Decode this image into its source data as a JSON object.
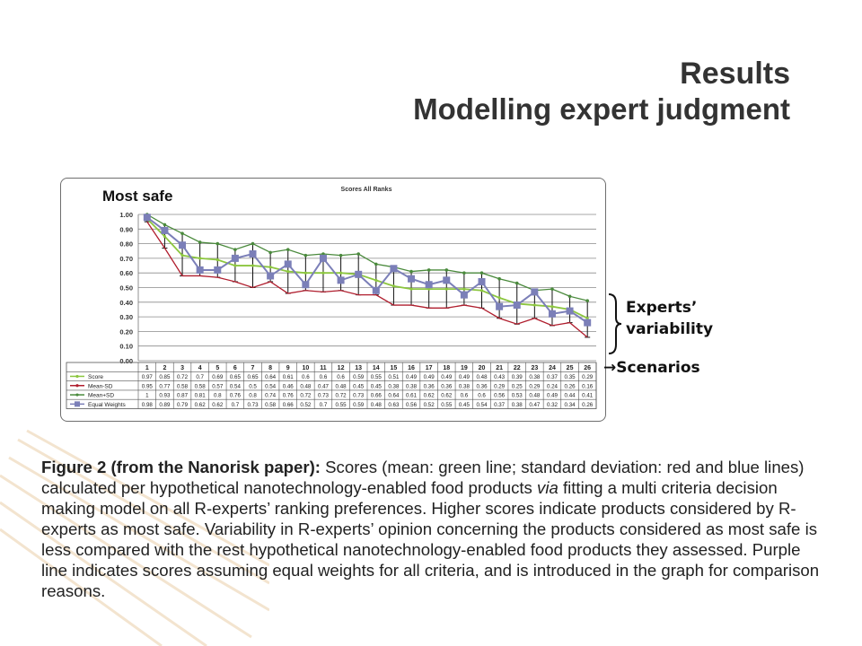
{
  "slide": {
    "title": "Results",
    "subtitle": "Modelling expert judgment"
  },
  "annotations": {
    "most_safe": "Most safe",
    "experts_variability": "Experts’",
    "experts_variability_2": "variability",
    "scenarios": "→Scenarios"
  },
  "caption": {
    "bold": "Figure 2 (from the Nanorisk paper):",
    "text_1": " Scores (mean: green line; standard deviation: red and blue lines) calculated per hypothetical nanotechnology-enabled food products ",
    "italic": "via",
    "text_2": " fitting a multi criteria decision making model on all R-experts’ ranking preferences. Higher scores indicate products considered by R-experts as most safe. Variability in R-experts’ opinion concerning the products considered as most safe is less compared with the rest hypothetical nanotechnology-enabled food products they assessed. Purple line indicates scores assuming equal weights for all criteria, and is introduced in the graph for comparison reasons."
  },
  "colors": {
    "score": "#8cc63f",
    "mean_minus_sd": "#b01e2e",
    "mean_plus_sd": "#4a8a3c",
    "equal_weights": "#7b7fb8"
  },
  "chart_data": {
    "type": "line",
    "title": "Scores All Ranks",
    "ylim": [
      0,
      1.0
    ],
    "yticks": [
      "0.00",
      "0.10",
      "0.20",
      "0.30",
      "0.40",
      "0.50",
      "0.60",
      "0.70",
      "0.80",
      "0.90",
      "1.00"
    ],
    "grid": true,
    "legend": "data-table-below",
    "x": [
      "1",
      "2",
      "3",
      "4",
      "5",
      "6",
      "7",
      "8",
      "9",
      "10",
      "11",
      "12",
      "13",
      "14",
      "15",
      "16",
      "17",
      "18",
      "19",
      "20",
      "21",
      "22",
      "23",
      "24",
      "25",
      "26"
    ],
    "series": [
      {
        "name": "Score",
        "values": [
          0.97,
          0.85,
          0.72,
          0.7,
          0.69,
          0.65,
          0.65,
          0.64,
          0.61,
          0.6,
          0.6,
          0.6,
          0.59,
          0.55,
          0.51,
          0.49,
          0.49,
          0.49,
          0.49,
          0.48,
          0.43,
          0.39,
          0.38,
          0.37,
          0.35,
          0.29
        ],
        "labels": [
          "0.97",
          "0.85",
          "0.72",
          "0.7",
          "0.69",
          "0.65",
          "0.65",
          "0.64",
          "0.61",
          "0.6",
          "0.6",
          "0.6",
          "0.59",
          "0.55",
          "0.51",
          "0.49",
          "0.49",
          "0.49",
          "0.49",
          "0.48",
          "0.43",
          "0.39",
          "0.38",
          "0.37",
          "0.35",
          "0.29"
        ]
      },
      {
        "name": "Mean-SD",
        "values": [
          0.95,
          0.77,
          0.58,
          0.58,
          0.57,
          0.54,
          0.5,
          0.54,
          0.46,
          0.48,
          0.47,
          0.48,
          0.45,
          0.45,
          0.38,
          0.38,
          0.36,
          0.36,
          0.38,
          0.36,
          0.29,
          0.25,
          0.29,
          0.24,
          0.26,
          0.16
        ],
        "labels": [
          "0.95",
          "0.77",
          "0.58",
          "0.58",
          "0.57",
          "0.54",
          "0.5",
          "0.54",
          "0.46",
          "0.48",
          "0.47",
          "0.48",
          "0.45",
          "0.45",
          "0.38",
          "0.38",
          "0.36",
          "0.36",
          "0.38",
          "0.36",
          "0.29",
          "0.25",
          "0.29",
          "0.24",
          "0.26",
          "0.16"
        ]
      },
      {
        "name": "Mean+SD",
        "values": [
          1,
          0.93,
          0.87,
          0.81,
          0.8,
          0.76,
          0.8,
          0.74,
          0.76,
          0.72,
          0.73,
          0.72,
          0.73,
          0.66,
          0.64,
          0.61,
          0.62,
          0.62,
          0.6,
          0.6,
          0.56,
          0.53,
          0.48,
          0.49,
          0.44,
          0.41
        ],
        "labels": [
          "1",
          "0.93",
          "0.87",
          "0.81",
          "0.8",
          "0.76",
          "0.8",
          "0.74",
          "0.76",
          "0.72",
          "0.73",
          "0.72",
          "0.73",
          "0.66",
          "0.64",
          "0.61",
          "0.62",
          "0.62",
          "0.6",
          "0.6",
          "0.56",
          "0.53",
          "0.48",
          "0.49",
          "0.44",
          "0.41"
        ]
      },
      {
        "name": "Equal Weights",
        "values": [
          0.98,
          0.89,
          0.79,
          0.62,
          0.62,
          0.7,
          0.73,
          0.58,
          0.66,
          0.52,
          0.7,
          0.55,
          0.59,
          0.48,
          0.63,
          0.56,
          0.52,
          0.55,
          0.45,
          0.54,
          0.37,
          0.38,
          0.47,
          0.32,
          0.34,
          0.26
        ],
        "labels": [
          "0.98",
          "0.89",
          "0.79",
          "0.62",
          "0.62",
          "0.7",
          "0.73",
          "0.58",
          "0.66",
          "0.52",
          "0.7",
          "0.55",
          "0.59",
          "0.48",
          "0.63",
          "0.56",
          "0.52",
          "0.55",
          "0.45",
          "0.54",
          "0.37",
          "0.38",
          "0.47",
          "0.32",
          "0.34",
          "0.26"
        ]
      }
    ]
  }
}
